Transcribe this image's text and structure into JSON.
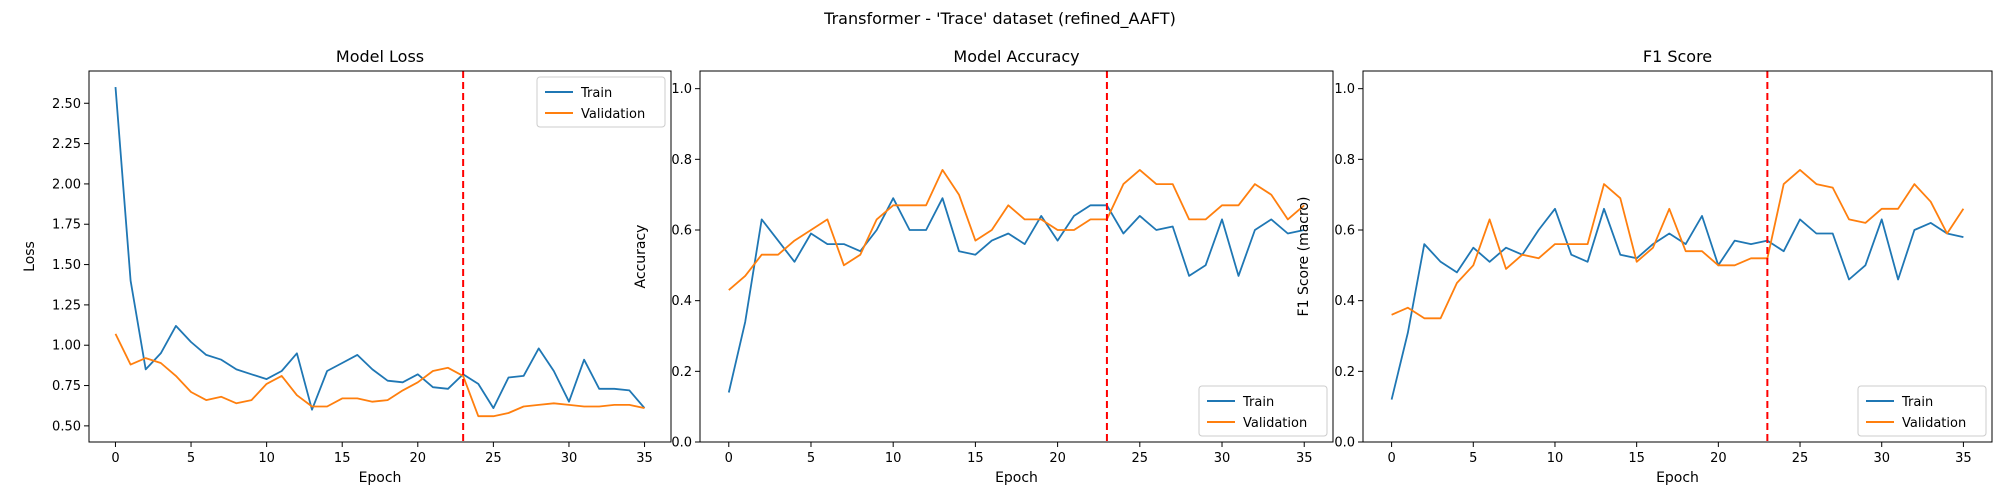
{
  "figure": {
    "suptitle": "Transformer - 'Trace' dataset (refined_AAFT)"
  },
  "colors": {
    "train": "#1f77b4",
    "validation": "#ff7f0e",
    "marker_line": "#ff0000"
  },
  "chart_data": [
    {
      "type": "line",
      "title": "Model Loss",
      "xlabel": "Epoch",
      "ylabel": "Loss",
      "xlim": [
        -1.75,
        36.75
      ],
      "ylim": [
        0.4,
        2.7
      ],
      "xticks": [
        0,
        5,
        10,
        15,
        20,
        25,
        30,
        35
      ],
      "yticks": [
        0.5,
        0.75,
        1.0,
        1.25,
        1.5,
        1.75,
        2.0,
        2.25,
        2.5
      ],
      "ytick_labels": [
        "0.50",
        "0.75",
        "1.00",
        "1.25",
        "1.50",
        "1.75",
        "2.00",
        "2.25",
        "2.50"
      ],
      "vline": {
        "x": 23,
        "style": "dashed"
      },
      "legend": {
        "position": "top-right",
        "entries": [
          "Train",
          "Validation"
        ]
      },
      "x": [
        0,
        1,
        2,
        3,
        4,
        5,
        6,
        7,
        8,
        9,
        10,
        11,
        12,
        13,
        14,
        15,
        16,
        17,
        18,
        19,
        20,
        21,
        22,
        23,
        24,
        25,
        26,
        27,
        28,
        29,
        30,
        31,
        32,
        33,
        34,
        35
      ],
      "series": [
        {
          "name": "Train",
          "color_key": "train",
          "values": [
            2.6,
            1.4,
            0.85,
            0.95,
            1.12,
            1.02,
            0.94,
            0.91,
            0.85,
            0.82,
            0.79,
            0.84,
            0.95,
            0.6,
            0.84,
            0.89,
            0.94,
            0.85,
            0.78,
            0.77,
            0.82,
            0.74,
            0.73,
            0.82,
            0.76,
            0.61,
            0.8,
            0.81,
            0.98,
            0.84,
            0.65,
            0.91,
            0.73,
            0.73,
            0.72,
            0.61
          ]
        },
        {
          "name": "Validation",
          "color_key": "validation",
          "values": [
            1.07,
            0.88,
            0.92,
            0.89,
            0.81,
            0.71,
            0.66,
            0.68,
            0.64,
            0.66,
            0.76,
            0.81,
            0.69,
            0.62,
            0.62,
            0.67,
            0.67,
            0.65,
            0.66,
            0.72,
            0.77,
            0.84,
            0.86,
            0.81,
            0.56,
            0.56,
            0.58,
            0.62,
            0.63,
            0.64,
            0.63,
            0.62,
            0.62,
            0.63,
            0.63,
            0.61
          ]
        }
      ]
    },
    {
      "type": "line",
      "title": "Model Accuracy",
      "xlabel": "Epoch",
      "ylabel": "Accuracy",
      "xlim": [
        -1.75,
        36.75
      ],
      "ylim": [
        0.0,
        1.05
      ],
      "xticks": [
        0,
        5,
        10,
        15,
        20,
        25,
        30,
        35
      ],
      "yticks": [
        0.0,
        0.2,
        0.4,
        0.6,
        0.8,
        1.0
      ],
      "ytick_labels": [
        "0.0",
        "0.2",
        "0.4",
        "0.6",
        "0.8",
        "1.0"
      ],
      "vline": {
        "x": 23,
        "style": "dashed"
      },
      "legend": {
        "position": "bottom-right",
        "entries": [
          "Train",
          "Validation"
        ]
      },
      "x": [
        0,
        1,
        2,
        3,
        4,
        5,
        6,
        7,
        8,
        9,
        10,
        11,
        12,
        13,
        14,
        15,
        16,
        17,
        18,
        19,
        20,
        21,
        22,
        23,
        24,
        25,
        26,
        27,
        28,
        29,
        30,
        31,
        32,
        33,
        34,
        35
      ],
      "series": [
        {
          "name": "Train",
          "color_key": "train",
          "values": [
            0.14,
            0.34,
            0.63,
            0.57,
            0.51,
            0.59,
            0.56,
            0.56,
            0.54,
            0.6,
            0.69,
            0.6,
            0.6,
            0.69,
            0.54,
            0.53,
            0.57,
            0.59,
            0.56,
            0.64,
            0.57,
            0.64,
            0.67,
            0.67,
            0.59,
            0.64,
            0.6,
            0.61,
            0.47,
            0.5,
            0.63,
            0.47,
            0.6,
            0.63,
            0.59,
            0.6
          ]
        },
        {
          "name": "Validation",
          "color_key": "validation",
          "values": [
            0.43,
            0.47,
            0.53,
            0.53,
            0.57,
            0.6,
            0.63,
            0.5,
            0.53,
            0.63,
            0.67,
            0.67,
            0.67,
            0.77,
            0.7,
            0.57,
            0.6,
            0.67,
            0.63,
            0.63,
            0.6,
            0.6,
            0.63,
            0.63,
            0.73,
            0.77,
            0.73,
            0.73,
            0.63,
            0.63,
            0.67,
            0.67,
            0.73,
            0.7,
            0.63,
            0.67
          ]
        }
      ]
    },
    {
      "type": "line",
      "title": "F1 Score",
      "xlabel": "Epoch",
      "ylabel": "F1 Score (macro)",
      "xlim": [
        -1.75,
        36.75
      ],
      "ylim": [
        0.0,
        1.05
      ],
      "xticks": [
        0,
        5,
        10,
        15,
        20,
        25,
        30,
        35
      ],
      "yticks": [
        0.0,
        0.2,
        0.4,
        0.6,
        0.8,
        1.0
      ],
      "ytick_labels": [
        "0.0",
        "0.2",
        "0.4",
        "0.6",
        "0.8",
        "1.0"
      ],
      "vline": {
        "x": 23,
        "style": "dashed"
      },
      "legend": {
        "position": "bottom-right",
        "entries": [
          "Train",
          "Validation"
        ]
      },
      "x": [
        0,
        1,
        2,
        3,
        4,
        5,
        6,
        7,
        8,
        9,
        10,
        11,
        12,
        13,
        14,
        15,
        16,
        17,
        18,
        19,
        20,
        21,
        22,
        23,
        24,
        25,
        26,
        27,
        28,
        29,
        30,
        31,
        32,
        33,
        34,
        35
      ],
      "series": [
        {
          "name": "Train",
          "color_key": "train",
          "values": [
            0.12,
            0.31,
            0.56,
            0.51,
            0.48,
            0.55,
            0.51,
            0.55,
            0.53,
            0.6,
            0.66,
            0.53,
            0.51,
            0.66,
            0.53,
            0.52,
            0.56,
            0.59,
            0.56,
            0.64,
            0.5,
            0.57,
            0.56,
            0.57,
            0.54,
            0.63,
            0.59,
            0.59,
            0.46,
            0.5,
            0.63,
            0.46,
            0.6,
            0.62,
            0.59,
            0.58
          ]
        },
        {
          "name": "Validation",
          "color_key": "validation",
          "values": [
            0.36,
            0.38,
            0.35,
            0.35,
            0.45,
            0.5,
            0.63,
            0.49,
            0.53,
            0.52,
            0.56,
            0.56,
            0.56,
            0.73,
            0.69,
            0.51,
            0.55,
            0.66,
            0.54,
            0.54,
            0.5,
            0.5,
            0.52,
            0.52,
            0.73,
            0.77,
            0.73,
            0.72,
            0.63,
            0.62,
            0.66,
            0.66,
            0.73,
            0.68,
            0.59,
            0.66
          ]
        }
      ]
    }
  ]
}
